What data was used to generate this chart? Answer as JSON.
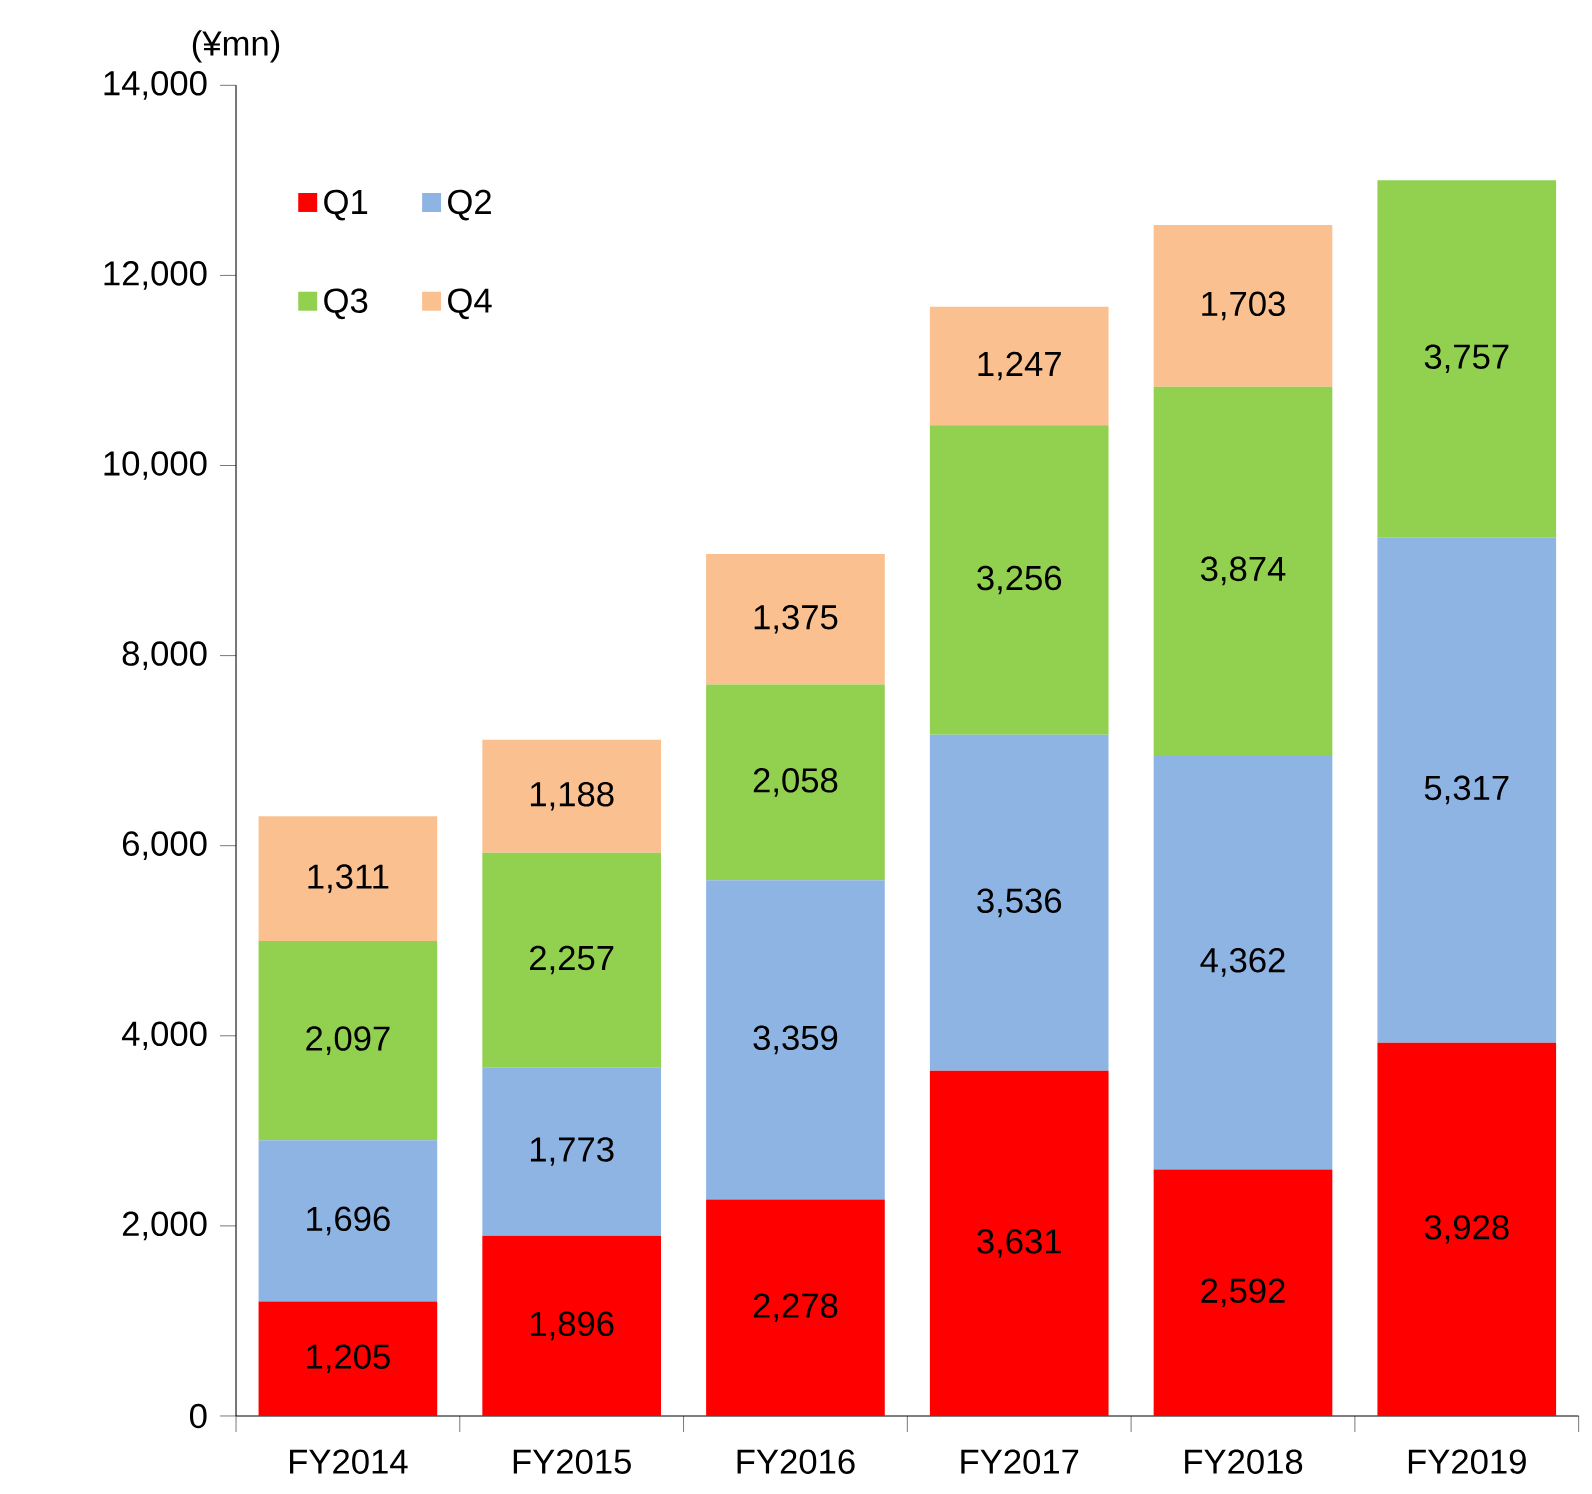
{
  "chart_data": {
    "type": "bar",
    "stacked": true,
    "ylabel": "(¥mn)",
    "categories": [
      "FY2014",
      "FY2015",
      "FY2016",
      "FY2017",
      "FY2018",
      "FY2019"
    ],
    "series": [
      {
        "name": "Q1",
        "color": "#ff0000",
        "values": [
          1205,
          1896,
          2278,
          3631,
          2592,
          3928
        ],
        "value_labels": [
          "1,205",
          "1,896",
          "2,278",
          "3,631",
          "2,592",
          "3,928"
        ]
      },
      {
        "name": "Q2",
        "color": "#8eb4e3",
        "values": [
          1696,
          1773,
          3359,
          3536,
          4362,
          5317
        ],
        "value_labels": [
          "1,696",
          "1,773",
          "3,359",
          "3,536",
          "4,362",
          "5,317"
        ]
      },
      {
        "name": "Q3",
        "color": "#92d050",
        "values": [
          2097,
          2257,
          2058,
          3256,
          3874,
          3757
        ],
        "value_labels": [
          "2,097",
          "2,257",
          "2,058",
          "3,256",
          "3,874",
          "3,757"
        ]
      },
      {
        "name": "Q4",
        "color": "#fac090",
        "values": [
          1311,
          1188,
          1375,
          1247,
          1703,
          null
        ],
        "value_labels": [
          "1,311",
          "1,188",
          "1,375",
          "1,247",
          "1,703",
          null
        ]
      }
    ],
    "ylim": [
      0,
      14000
    ],
    "yticks": [
      {
        "value": 0,
        "label": "0"
      },
      {
        "value": 2000,
        "label": "2,000"
      },
      {
        "value": 4000,
        "label": "4,000"
      },
      {
        "value": 6000,
        "label": "6,000"
      },
      {
        "value": 8000,
        "label": "8,000"
      },
      {
        "value": 10000,
        "label": "10,000"
      },
      {
        "value": 12000,
        "label": "12,000"
      },
      {
        "value": 14000,
        "label": "14,000"
      }
    ],
    "legend": "top left",
    "grid": false
  }
}
